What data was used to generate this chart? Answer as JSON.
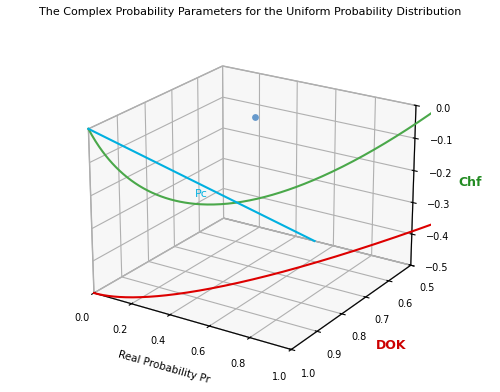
{
  "title": "The Complex Probability Parameters for the Uniform Probability Distribution",
  "xlabel": "Real Probability Pr",
  "ylabel": "DOK",
  "zlabel": "Chf",
  "xlabel_color": "#000000",
  "ylabel_color": "#cc0000",
  "zlabel_color": "#228B22",
  "xlim": [
    0,
    1
  ],
  "ylim": [
    0.5,
    1
  ],
  "zlim": [
    -0.5,
    0
  ],
  "xticks": [
    0,
    0.2,
    0.4,
    0.6,
    0.8,
    1.0
  ],
  "yticks": [
    0.5,
    0.6,
    0.7,
    0.8,
    0.9,
    1.0
  ],
  "zticks": [
    -0.5,
    -0.4,
    -0.3,
    -0.2,
    -0.1,
    0
  ],
  "green_color": "#4aa84a",
  "cyan_color": "#00b0e0",
  "red_color": "#dd0000",
  "pc_label_color": "#00b0e0",
  "n_points": 300,
  "elev": 22,
  "azim": -57
}
